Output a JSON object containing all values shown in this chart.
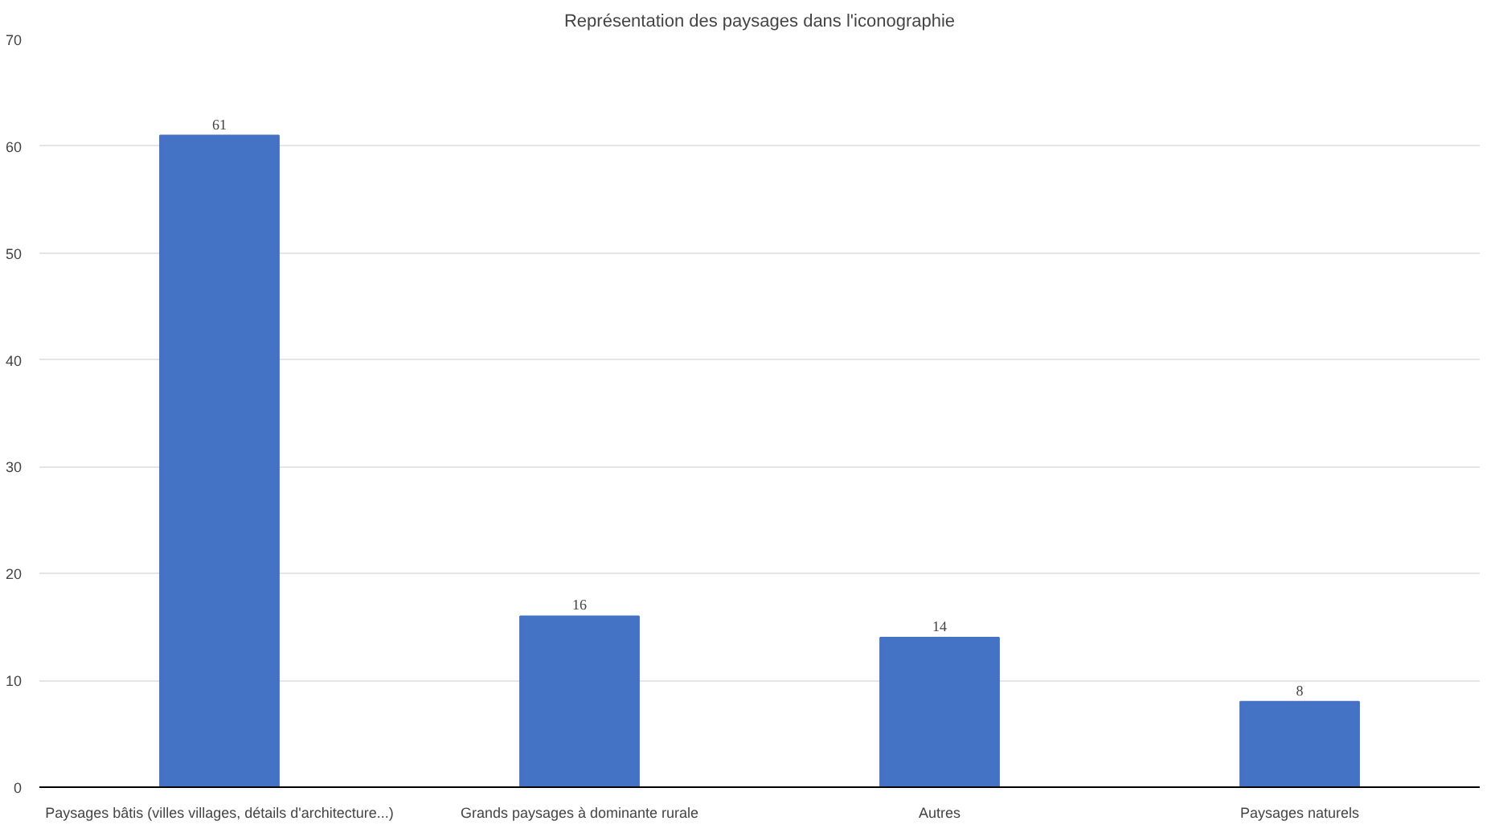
{
  "chart_data": {
    "type": "bar",
    "title": "Représentation des paysages dans l'iconographie",
    "categories": [
      "Paysages bâtis (villes villages, détails d'architecture...)",
      "Grands paysages à dominante rurale",
      "Autres",
      "Paysages naturels"
    ],
    "values": [
      61,
      16,
      14,
      8
    ],
    "color": "#4472c4",
    "ylim": [
      0,
      70
    ],
    "yticks": [
      0,
      10,
      20,
      30,
      40,
      50,
      60,
      70
    ],
    "grid": "y",
    "data_labels": true
  }
}
